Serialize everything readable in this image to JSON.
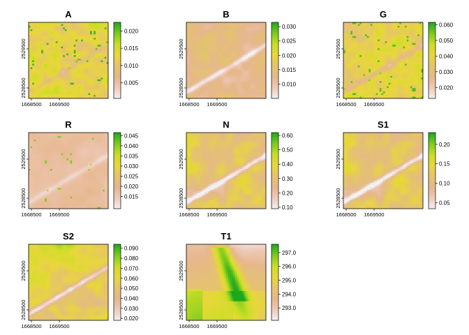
{
  "figure": {
    "background": "#ffffff"
  },
  "colors": {
    "ramp": [
      "#f2f2f2",
      "#eec9b8",
      "#e6b78c",
      "#e4c46c",
      "#e8d73a",
      "#c9de25",
      "#7ecb1f",
      "#1fa81d"
    ]
  },
  "chart_data": [
    {
      "type": "heatmap",
      "title": "A",
      "pattern": "A",
      "x_ticks": [
        "1668500",
        "1669500"
      ],
      "y_ticks": [
        "2529500",
        "2528500"
      ],
      "colorbar": {
        "min": 0.0005,
        "max": 0.0225,
        "tick_values": [
          0.005,
          0.01,
          0.015,
          0.02
        ],
        "tick_labels": [
          "0.005",
          "0.010",
          "0.015",
          "0.020"
        ]
      }
    },
    {
      "type": "heatmap",
      "title": "B",
      "pattern": "B",
      "x_ticks": [
        "1668500",
        "1669500"
      ],
      "y_ticks": [
        "2529500",
        "2528500"
      ],
      "colorbar": {
        "min": 0.005,
        "max": 0.0315,
        "tick_values": [
          0.01,
          0.015,
          0.02,
          0.025,
          0.03
        ],
        "tick_labels": [
          "0.010",
          "0.015",
          "0.020",
          "0.025",
          "0.030"
        ]
      }
    },
    {
      "type": "heatmap",
      "title": "G",
      "pattern": "G",
      "x_ticks": [
        "1668500",
        "1669500"
      ],
      "y_ticks": [
        "2529500",
        "2528500"
      ],
      "colorbar": {
        "min": 0.013,
        "max": 0.0615,
        "tick_values": [
          0.02,
          0.03,
          0.04,
          0.05,
          0.06
        ],
        "tick_labels": [
          "0.020",
          "0.030",
          "0.040",
          "0.050",
          "0.060"
        ]
      }
    },
    {
      "type": "heatmap",
      "title": "R",
      "pattern": "R",
      "x_ticks": [
        "1668500",
        "1669500"
      ],
      "y_ticks": [
        "2529500",
        "2528500"
      ],
      "colorbar": {
        "min": 0.009,
        "max": 0.0465,
        "tick_values": [
          0.015,
          0.02,
          0.025,
          0.03,
          0.035,
          0.04,
          0.045
        ],
        "tick_labels": [
          "0.015",
          "0.020",
          "0.025",
          "0.030",
          "0.035",
          "0.040",
          "0.045"
        ]
      }
    },
    {
      "type": "heatmap",
      "title": "N",
      "pattern": "N",
      "x_ticks": [
        "1668500",
        "1669500"
      ],
      "y_ticks": [
        "2529500",
        "2528500"
      ],
      "colorbar": {
        "min": 0.09,
        "max": 0.62,
        "tick_values": [
          0.1,
          0.2,
          0.3,
          0.4,
          0.5,
          0.6
        ],
        "tick_labels": [
          "0.10",
          "0.20",
          "0.30",
          "0.40",
          "0.50",
          "0.60"
        ]
      }
    },
    {
      "type": "heatmap",
      "title": "S1",
      "pattern": "N",
      "x_ticks": [
        "1668500",
        "1669500"
      ],
      "y_ticks": [
        "2529500",
        "2528500"
      ],
      "colorbar": {
        "min": 0.035,
        "max": 0.23,
        "tick_values": [
          0.05,
          0.1,
          0.15,
          0.2
        ],
        "tick_labels": [
          "0.05",
          "0.10",
          "0.15",
          "0.20"
        ]
      }
    },
    {
      "type": "heatmap",
      "title": "S2",
      "pattern": "S2",
      "x_ticks": [
        "1668500",
        "1669500"
      ],
      "y_ticks": [
        "2529500",
        "2528500"
      ],
      "colorbar": {
        "min": 0.018,
        "max": 0.094,
        "tick_values": [
          0.02,
          0.03,
          0.04,
          0.05,
          0.06,
          0.07,
          0.08,
          0.09
        ],
        "tick_labels": [
          "0.020",
          "0.030",
          "0.040",
          "0.050",
          "0.060",
          "0.070",
          "0.080",
          "0.090"
        ]
      }
    },
    {
      "type": "heatmap",
      "title": "T1",
      "pattern": "T1",
      "x_ticks": [
        "1668500",
        "1669500"
      ],
      "y_ticks": [
        "2529500",
        "2528500"
      ],
      "colorbar": {
        "min": 292.1,
        "max": 297.6,
        "tick_values": [
          293.0,
          294.0,
          295.0,
          296.0,
          297.0
        ],
        "tick_labels": [
          "293.0",
          "294.0",
          "295.0",
          "296.0",
          "297.0"
        ]
      }
    }
  ]
}
